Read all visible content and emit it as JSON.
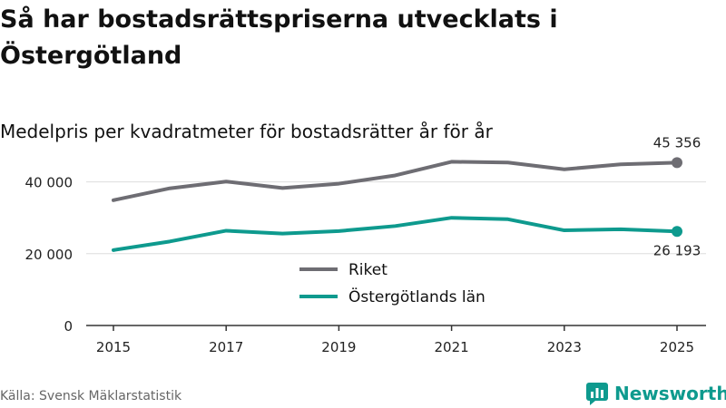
{
  "header": {
    "title": "Så har bostadsrättspriserna utvecklats i Östergötland",
    "subtitle": "Medelpris per kvadratmeter för bostadsrätter år för år"
  },
  "footer": {
    "source": "Källa: Svensk Mäklarstatistik",
    "brand": "Newsworthy"
  },
  "colors": {
    "riket": "#6e6d73",
    "ostergotland": "#0e9a8e",
    "grid": "#dddddd",
    "axis": "#333333"
  },
  "chart_data": {
    "type": "line",
    "title": "Så har bostadsrättspriserna utvecklats i Östergötland",
    "subtitle": "Medelpris per kvadratmeter för bostadsrätter år för år",
    "xlabel": "",
    "ylabel": "",
    "x": [
      2015,
      2016,
      2017,
      2018,
      2019,
      2020,
      2021,
      2022,
      2023,
      2024,
      2025
    ],
    "x_ticks": [
      "2015",
      "2017",
      "2019",
      "2021",
      "2023",
      "2025"
    ],
    "y_ticks": [
      "0",
      "20 000",
      "40 000"
    ],
    "ylim": [
      0,
      50000
    ],
    "grid": true,
    "legend_position": "bottom-center",
    "series": [
      {
        "name": "Riket",
        "values": [
          34900,
          38200,
          40100,
          38300,
          39500,
          41800,
          45600,
          45400,
          43500,
          44900,
          45356
        ],
        "end_label": "45 356"
      },
      {
        "name": "Östergötlands län",
        "values": [
          21000,
          23400,
          26400,
          25600,
          26300,
          27700,
          30000,
          29600,
          26500,
          26800,
          26193
        ],
        "end_label": "26 193"
      }
    ]
  }
}
